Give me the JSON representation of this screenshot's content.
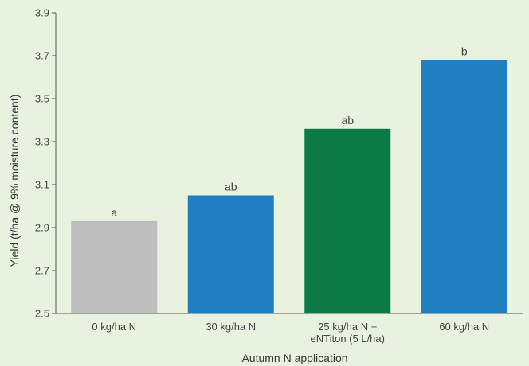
{
  "chart_data": {
    "type": "bar",
    "title": "",
    "xlabel": "Autumn N application",
    "ylabel": "Yield (t/ha @ 9% moisture content)",
    "ylim": [
      2.5,
      3.9
    ],
    "yticks": [
      "2.5",
      "2.7",
      "2.9",
      "3.1",
      "3.3",
      "3.5",
      "3.7",
      "3.9"
    ],
    "grid": false,
    "categories": [
      [
        "0 kg/ha N"
      ],
      [
        "30 kg/ha N"
      ],
      [
        "25 kg/ha N +",
        "eNTiton (5 L/ha)"
      ],
      [
        "60 kg/ha N"
      ]
    ],
    "values": [
      2.93,
      3.05,
      3.36,
      3.68
    ],
    "labels": [
      "a",
      "ab",
      "ab",
      "b"
    ],
    "colors": [
      "#bebebe",
      "#1f7fc0",
      "#0b7a46",
      "#1f7fc0"
    ]
  }
}
